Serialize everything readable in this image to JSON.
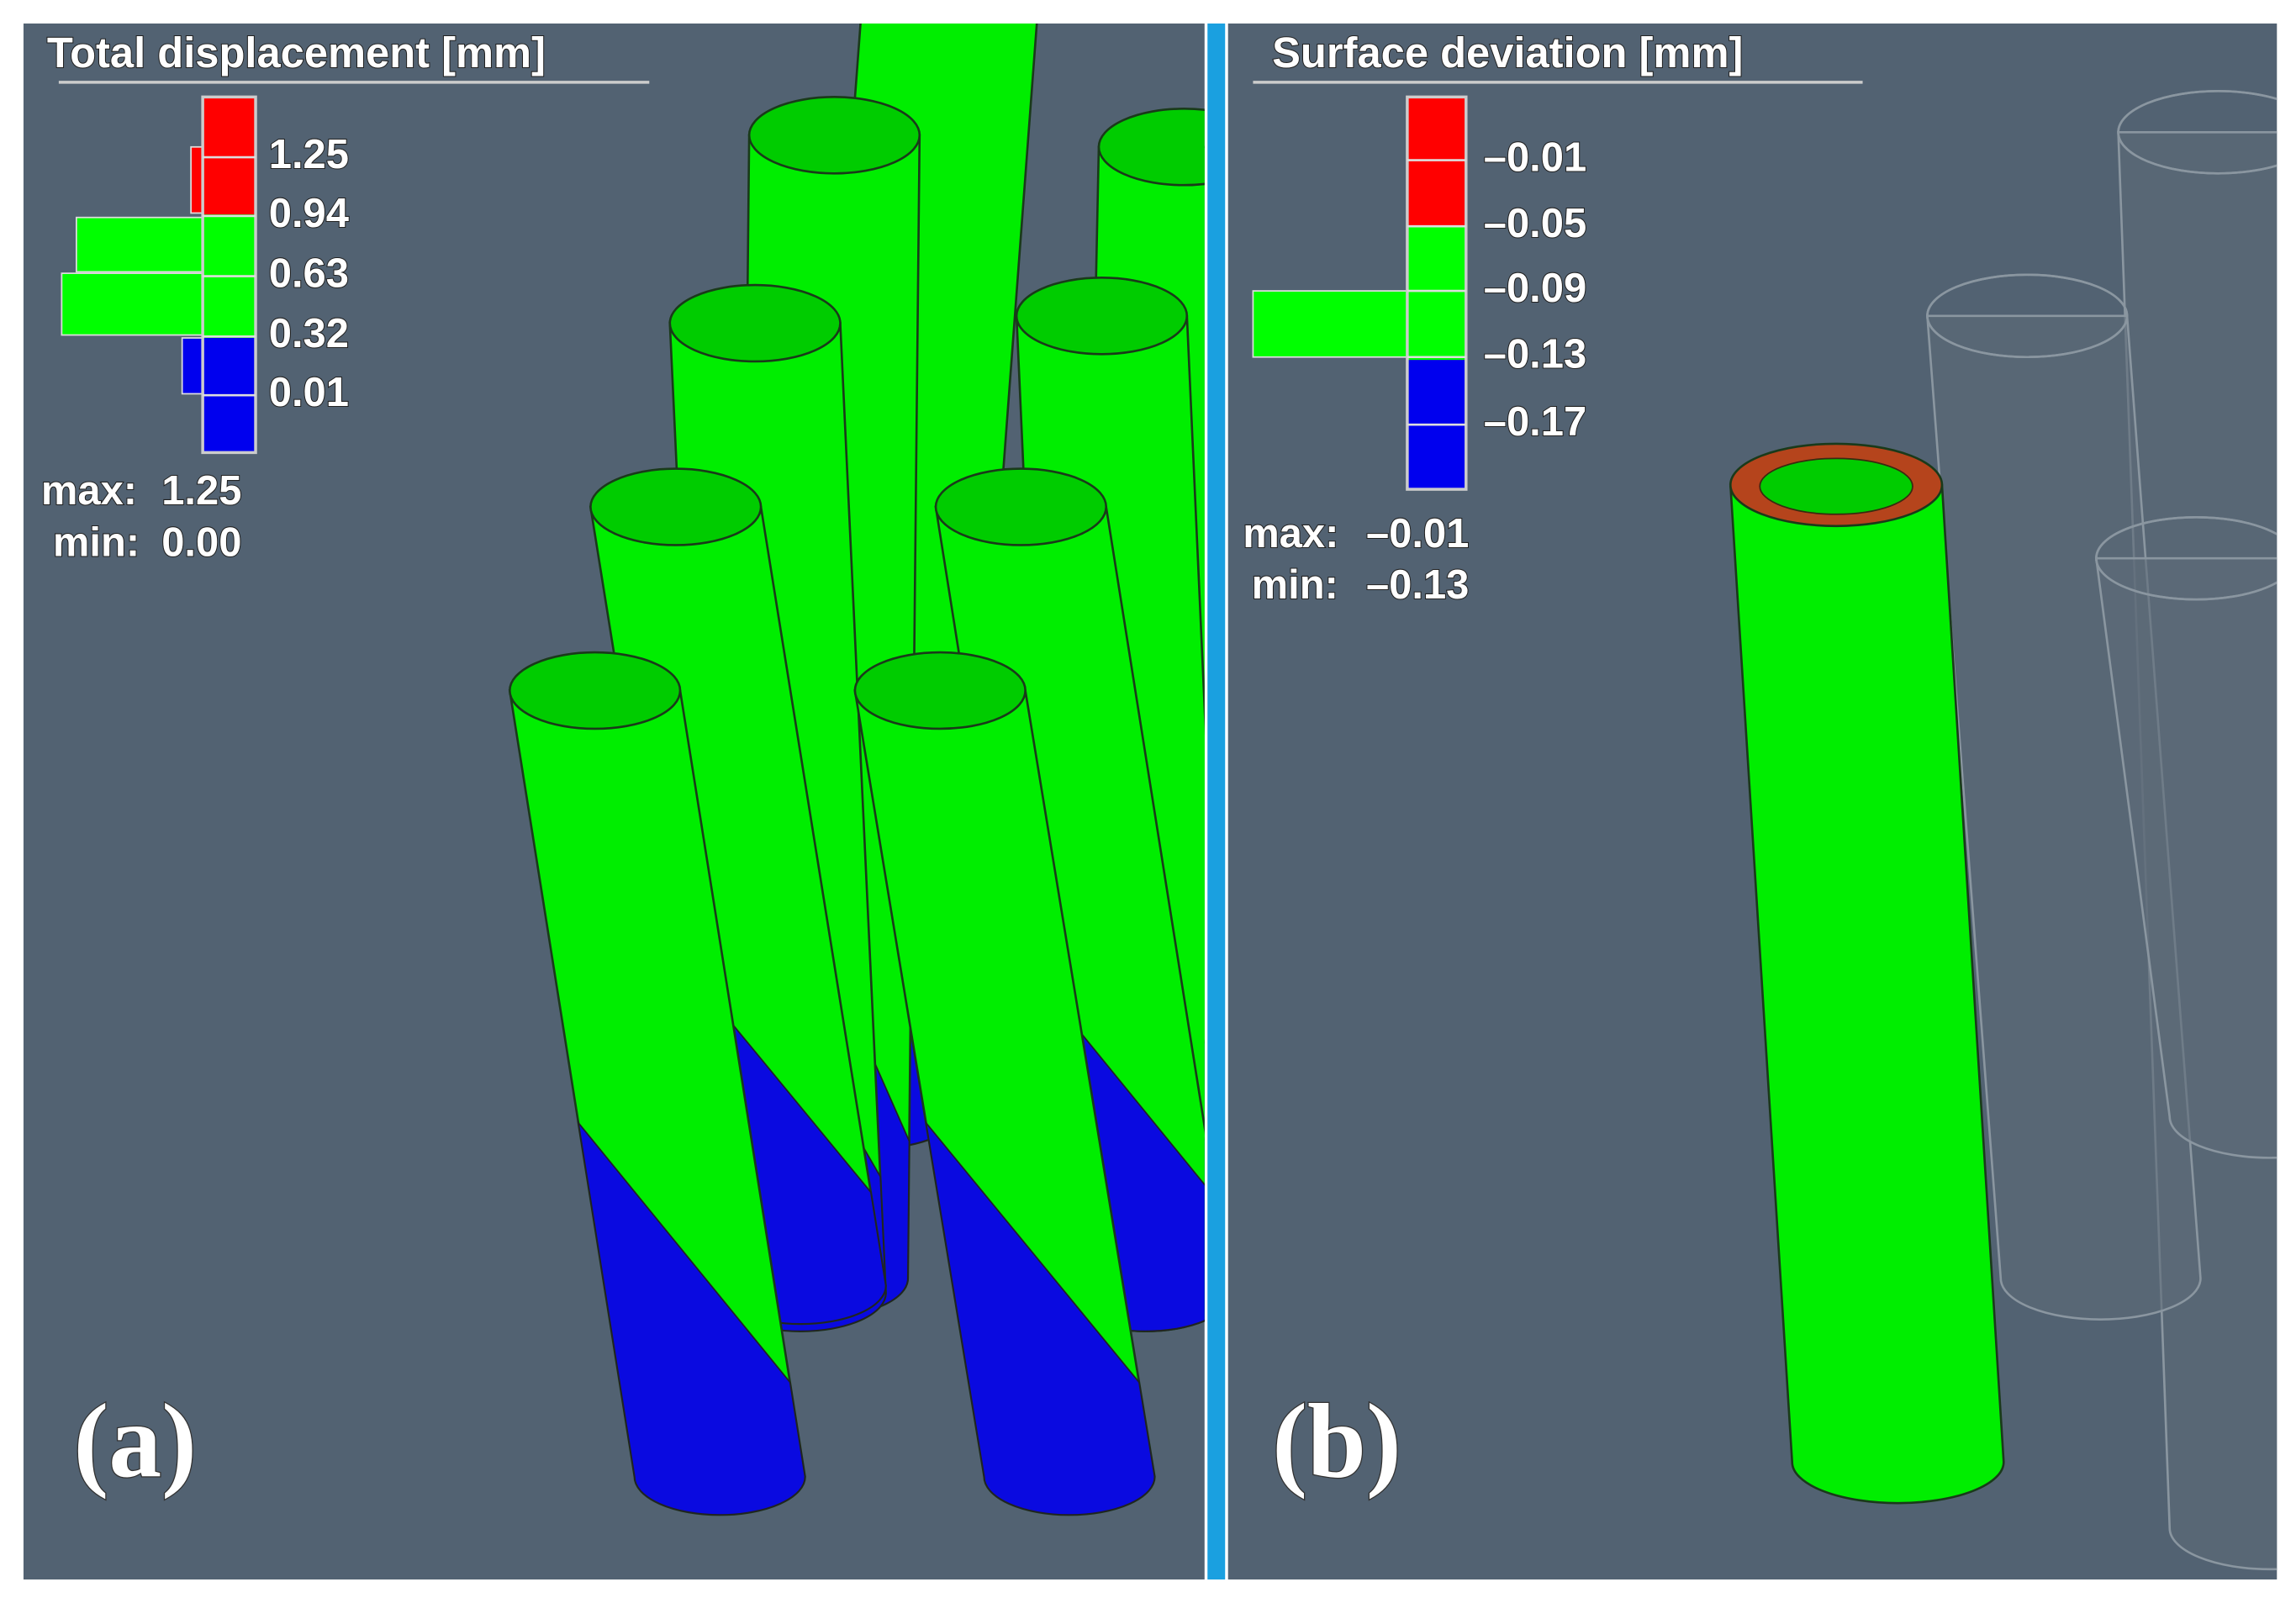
{
  "panel_a": {
    "title": "Total displacement [mm]",
    "legend_ticks": [
      "1.25",
      "0.94",
      "0.63",
      "0.32",
      "0.01"
    ],
    "max_label": "max:",
    "max_value": "1.25",
    "min_label": "min:",
    "min_value": "0.00",
    "panel_label": "(a)"
  },
  "panel_b": {
    "title": "Surface deviation [mm]",
    "legend_ticks": [
      "–0.01",
      "–0.05",
      "–0.09",
      "–0.13",
      "–0.17"
    ],
    "max_label": "max:",
    "max_value": "–0.01",
    "min_label": "min:",
    "min_value": "–0.13",
    "panel_label": "(b)"
  }
}
